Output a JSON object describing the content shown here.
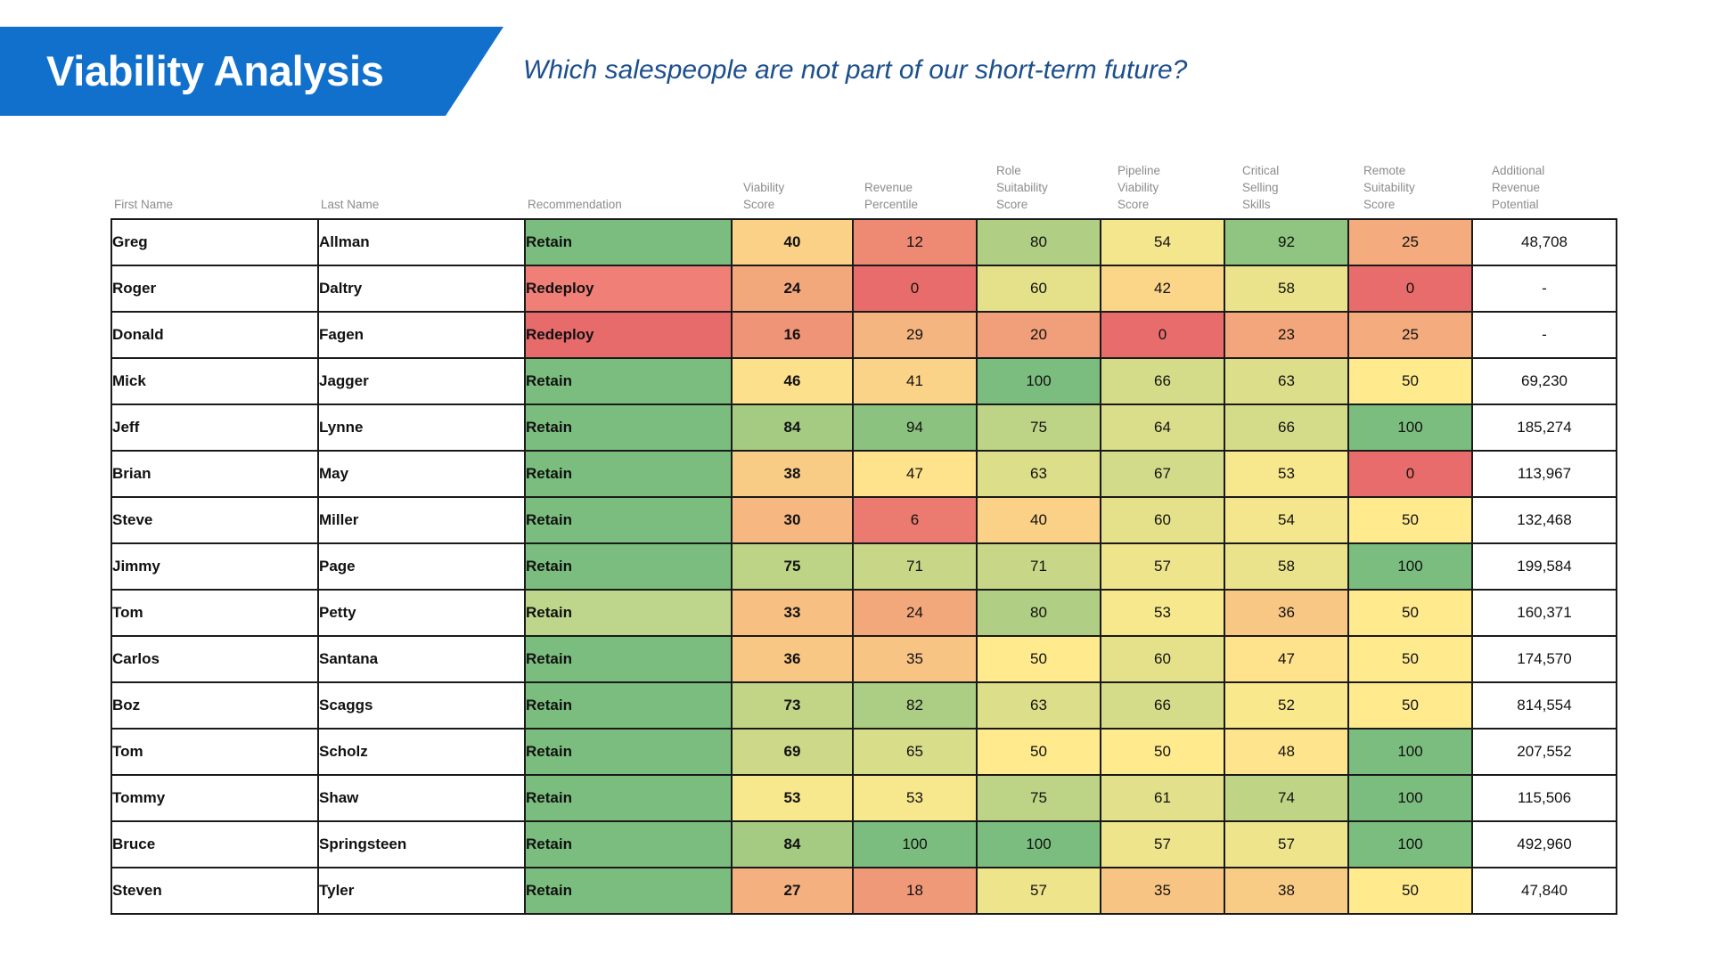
{
  "title": "Viability Analysis",
  "subtitle": "Which salespeople are not part of our short-term future?",
  "headers": [
    "First Name",
    "Last Name",
    "Recommendation",
    "Viability\nScore",
    "Revenue\nPercentile",
    "Role\nSuitability\nScore",
    "Pipeline\nViability\nScore",
    "Critical\nSelling\nSkills",
    "Remote\nSuitability\nScore",
    "Additional\nRevenue\nPotential"
  ],
  "colors": {
    "banner": "#1270cd",
    "subtitle": "#1c4f8c",
    "recommendation_retain": "#7bbd7e",
    "recommendation_retain_light": "#bdd68b",
    "recommendation_redeploy": "#f07f78",
    "recommendation_redeploy_dark": "#e86b6b"
  },
  "rows": [
    {
      "first": "Greg",
      "last": "Allman",
      "rec": "Retain",
      "viability": 40,
      "revenue_pct": 12,
      "role": 80,
      "pipeline": 54,
      "skills": 92,
      "remote": 25,
      "additional": "48,708"
    },
    {
      "first": "Roger",
      "last": "Daltry",
      "rec": "Redeploy",
      "viability": 24,
      "revenue_pct": 0,
      "role": 60,
      "pipeline": 42,
      "skills": 58,
      "remote": 0,
      "additional": "-"
    },
    {
      "first": "Donald",
      "last": "Fagen",
      "rec": "Redeploy",
      "viability": 16,
      "revenue_pct": 29,
      "role": 20,
      "pipeline": 0,
      "skills": 23,
      "remote": 25,
      "additional": "-"
    },
    {
      "first": "Mick",
      "last": "Jagger",
      "rec": "Retain",
      "viability": 46,
      "revenue_pct": 41,
      "role": 100,
      "pipeline": 66,
      "skills": 63,
      "remote": 50,
      "additional": "69,230"
    },
    {
      "first": "Jeff",
      "last": "Lynne",
      "rec": "Retain",
      "viability": 84,
      "revenue_pct": 94,
      "role": 75,
      "pipeline": 64,
      "skills": 66,
      "remote": 100,
      "additional": "185,274"
    },
    {
      "first": "Brian",
      "last": "May",
      "rec": "Retain",
      "viability": 38,
      "revenue_pct": 47,
      "role": 63,
      "pipeline": 67,
      "skills": 53,
      "remote": 0,
      "additional": "113,967"
    },
    {
      "first": "Steve",
      "last": "Miller",
      "rec": "Retain",
      "viability": 30,
      "revenue_pct": 6,
      "role": 40,
      "pipeline": 60,
      "skills": 54,
      "remote": 50,
      "additional": "132,468"
    },
    {
      "first": "Jimmy",
      "last": "Page",
      "rec": "Retain",
      "viability": 75,
      "revenue_pct": 71,
      "role": 71,
      "pipeline": 57,
      "skills": 58,
      "remote": 100,
      "additional": "199,584"
    },
    {
      "first": "Tom",
      "last": "Petty",
      "rec": "Retain",
      "viability": 33,
      "revenue_pct": 24,
      "role": 80,
      "pipeline": 53,
      "skills": 36,
      "remote": 50,
      "additional": "160,371"
    },
    {
      "first": "Carlos",
      "last": "Santana",
      "rec": "Retain",
      "viability": 36,
      "revenue_pct": 35,
      "role": 50,
      "pipeline": 60,
      "skills": 47,
      "remote": 50,
      "additional": "174,570"
    },
    {
      "first": "Boz",
      "last": "Scaggs",
      "rec": "Retain",
      "viability": 73,
      "revenue_pct": 82,
      "role": 63,
      "pipeline": 66,
      "skills": 52,
      "remote": 50,
      "additional": "814,554"
    },
    {
      "first": "Tom",
      "last": "Scholz",
      "rec": "Retain",
      "viability": 69,
      "revenue_pct": 65,
      "role": 50,
      "pipeline": 50,
      "skills": 48,
      "remote": 100,
      "additional": "207,552"
    },
    {
      "first": "Tommy",
      "last": "Shaw",
      "rec": "Retain",
      "viability": 53,
      "revenue_pct": 53,
      "role": 75,
      "pipeline": 61,
      "skills": 74,
      "remote": 100,
      "additional": "115,506"
    },
    {
      "first": "Bruce",
      "last": "Springsteen",
      "rec": "Retain",
      "viability": 84,
      "revenue_pct": 100,
      "role": 100,
      "pipeline": 57,
      "skills": 57,
      "remote": 100,
      "additional": "492,960"
    },
    {
      "first": "Steven",
      "last": "Tyler",
      "rec": "Retain",
      "viability": 27,
      "revenue_pct": 18,
      "role": 57,
      "pipeline": 35,
      "skills": 38,
      "remote": 50,
      "additional": "47,840"
    }
  ]
}
